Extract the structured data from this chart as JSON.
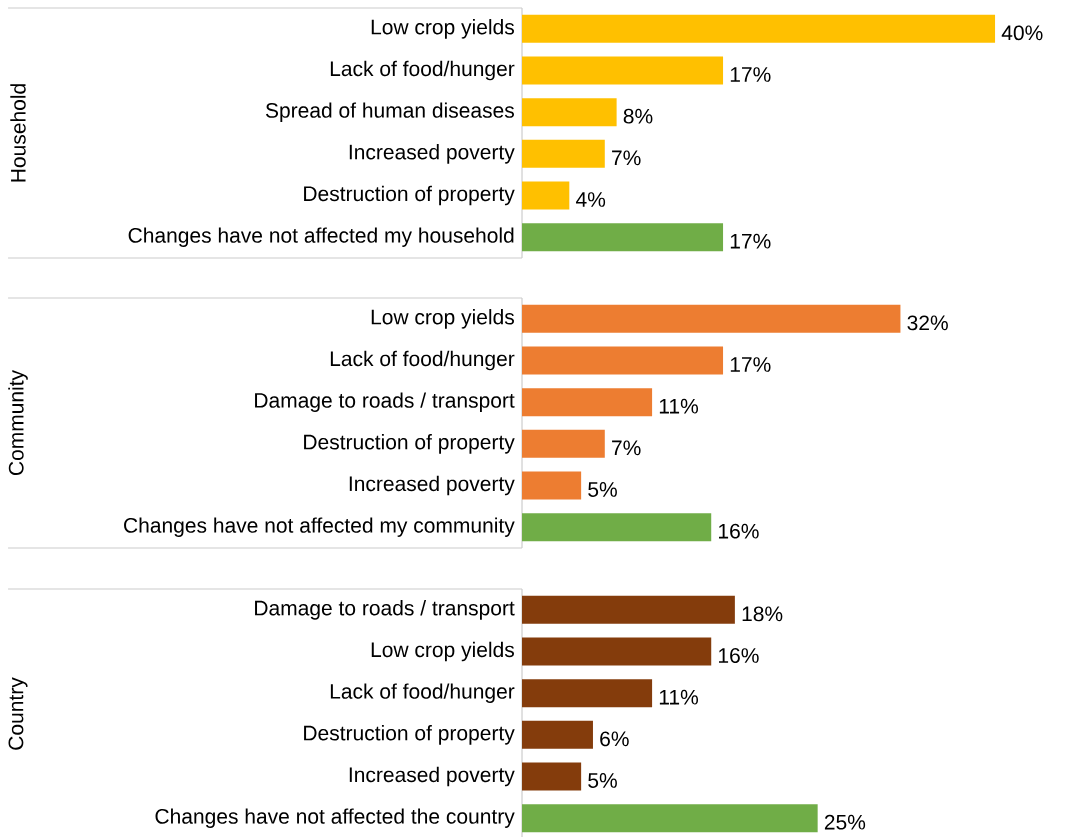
{
  "chart_data": [
    {
      "type": "bar",
      "orientation": "horizontal",
      "ylabel": "Household",
      "categories": [
        "Low crop yields",
        "Lack of food/hunger",
        "Spread of human diseases",
        "Increased poverty",
        "Destruction of property",
        "Changes have not affected my household"
      ],
      "values": [
        40,
        17,
        8,
        7,
        4,
        17
      ],
      "value_labels": [
        "40%",
        "17%",
        "8%",
        "7%",
        "4%",
        "17%"
      ],
      "colors": [
        "#ffc000",
        "#ffc000",
        "#ffc000",
        "#ffc000",
        "#ffc000",
        "#70ad47"
      ],
      "tick_labels": "y"
    },
    {
      "type": "bar",
      "orientation": "horizontal",
      "ylabel": "Community",
      "categories": [
        "Low crop yields",
        "Lack of food/hunger",
        "Damage to roads / transport",
        "Destruction of property",
        "Increased poverty",
        "Changes have not affected my community"
      ],
      "values": [
        32,
        17,
        11,
        7,
        5,
        16
      ],
      "value_labels": [
        "32%",
        "17%",
        "11%",
        "7%",
        "5%",
        "16%"
      ],
      "colors": [
        "#ed7d31",
        "#ed7d31",
        "#ed7d31",
        "#ed7d31",
        "#ed7d31",
        "#70ad47"
      ],
      "tick_labels": "y"
    },
    {
      "type": "bar",
      "orientation": "horizontal",
      "ylabel": "Country",
      "categories": [
        "Damage to roads / transport",
        "Low crop yields",
        "Lack of food/hunger",
        "Destruction of property",
        "Increased poverty",
        "Changes have not affected the country"
      ],
      "values": [
        18,
        16,
        11,
        6,
        5,
        25
      ],
      "value_labels": [
        "18%",
        "16%",
        "11%",
        "6%",
        "5%",
        "25%"
      ],
      "colors": [
        "#843c0c",
        "#843c0c",
        "#843c0c",
        "#843c0c",
        "#843c0c",
        "#70ad47"
      ],
      "tick_labels": "y"
    }
  ]
}
